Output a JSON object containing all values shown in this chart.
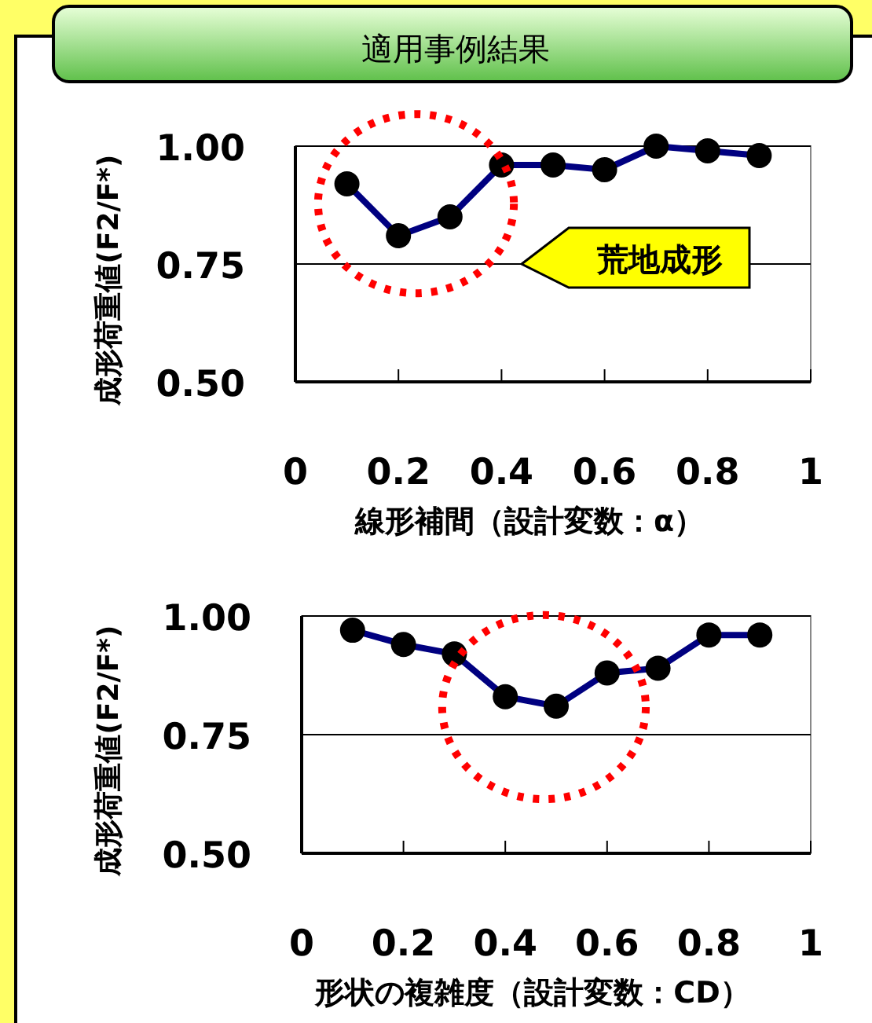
{
  "chart_data": [
    {
      "type": "line",
      "title": "適用事例結果",
      "xlabel": "線形補間（設計変数：α）",
      "ylabel": "成形荷重値(F2/F*)",
      "x": [
        0.1,
        0.2,
        0.3,
        0.4,
        0.5,
        0.6,
        0.7,
        0.8,
        0.9
      ],
      "series": [
        {
          "color": "#000080",
          "values": [
            0.92,
            0.81,
            0.85,
            0.96,
            0.96,
            0.95,
            1.0,
            0.99,
            0.98
          ]
        }
      ],
      "xlim": [
        0,
        1
      ],
      "xticks": [
        0,
        0.2,
        0.4,
        0.6,
        0.8,
        1
      ],
      "ylim": [
        0.5,
        1.0
      ],
      "yticks": [
        {
          "value": 0.5,
          "label": "0.50"
        },
        {
          "value": 0.75,
          "label": "0.75"
        },
        {
          "value": 1.0,
          "label": "1.00"
        }
      ],
      "grid": "y",
      "marker": "circle",
      "annotations": [
        "荒地成形"
      ]
    },
    {
      "type": "line",
      "xlabel": "形状の複雑度（設計変数：CD）",
      "ylabel": "成形荷重値(F2/F*)",
      "x": [
        0.1,
        0.2,
        0.3,
        0.4,
        0.5,
        0.6,
        0.7,
        0.8,
        0.9
      ],
      "series": [
        {
          "color": "#000080",
          "values": [
            0.97,
            0.94,
            0.92,
            0.83,
            0.81,
            0.88,
            0.89,
            0.96,
            0.96
          ]
        }
      ],
      "xlim": [
        0,
        1
      ],
      "xticks": [
        0,
        0.2,
        0.4,
        0.6,
        0.8,
        1
      ],
      "ylim": [
        0.5,
        1.0
      ],
      "yticks": [
        {
          "value": 0.5,
          "label": "0.50"
        },
        {
          "value": 0.75,
          "label": "0.75"
        },
        {
          "value": 1.0,
          "label": "1.00"
        }
      ],
      "grid": "y",
      "marker": "circle"
    }
  ]
}
